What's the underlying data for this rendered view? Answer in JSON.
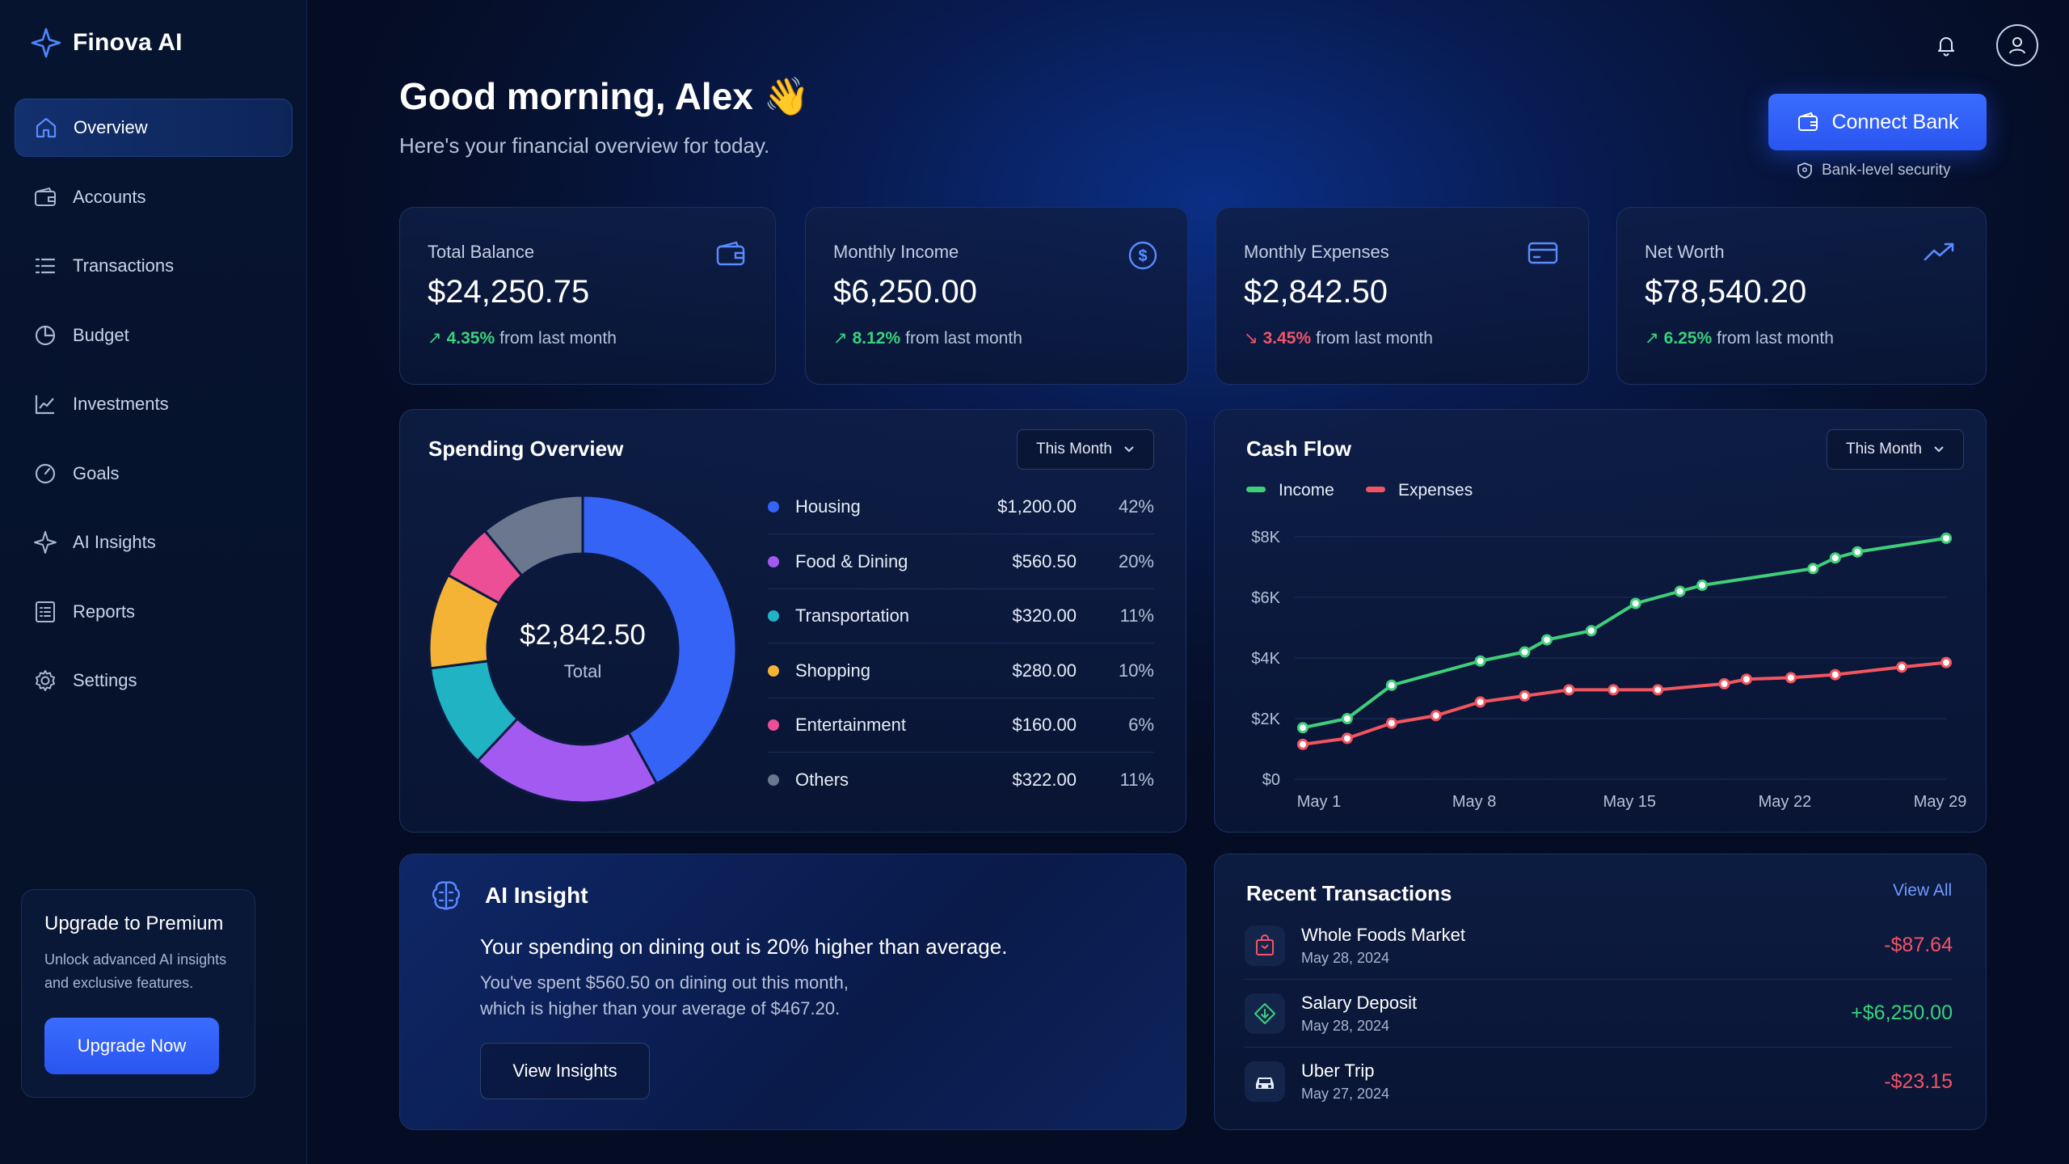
{
  "app": {
    "name": "Finova AI"
  },
  "sidebar": {
    "items": [
      {
        "label": "Overview",
        "icon": "home-icon",
        "active": true
      },
      {
        "label": "Accounts",
        "icon": "wallet-icon"
      },
      {
        "label": "Transactions",
        "icon": "list-icon"
      },
      {
        "label": "Budget",
        "icon": "pie-icon"
      },
      {
        "label": "Investments",
        "icon": "chart-line-icon"
      },
      {
        "label": "Goals",
        "icon": "target-icon"
      },
      {
        "label": "AI Insights",
        "icon": "sparkle-icon"
      },
      {
        "label": "Reports",
        "icon": "report-icon"
      },
      {
        "label": "Settings",
        "icon": "gear-icon"
      }
    ],
    "premium": {
      "title": "Upgrade to Premium",
      "line1": "Unlock advanced AI insights",
      "line2": "and exclusive features.",
      "button": "Upgrade Now"
    }
  },
  "header": {
    "greeting": "Good morning, Alex 👋",
    "subtitle": "Here's your financial overview for today.",
    "connect_button": "Connect Bank",
    "security_note": "Bank-level security"
  },
  "stats": [
    {
      "label": "Total Balance",
      "value": "$24,250.75",
      "change": "4.35%",
      "direction": "up",
      "suffix": "from last month",
      "icon": "wallet-icon"
    },
    {
      "label": "Monthly Income",
      "value": "$6,250.00",
      "change": "8.12%",
      "direction": "up",
      "suffix": "from last month",
      "icon": "dollar-circle-icon"
    },
    {
      "label": "Monthly Expenses",
      "value": "$2,842.50",
      "change": "3.45%",
      "direction": "down",
      "suffix": "from last month",
      "icon": "credit-card-icon"
    },
    {
      "label": "Net Worth",
      "value": "$78,540.20",
      "change": "6.25%",
      "direction": "up",
      "suffix": "from last month",
      "icon": "trend-up-icon"
    }
  ],
  "spending": {
    "title": "Spending Overview",
    "period": "This Month",
    "total": "$2,842.50",
    "total_label": "Total",
    "items": [
      {
        "name": "Housing",
        "amount": "$1,200.00",
        "pct": "42%",
        "value": 42,
        "color": "#3563f5"
      },
      {
        "name": "Food & Dining",
        "amount": "$560.50",
        "pct": "20%",
        "value": 20,
        "color": "#a35af0"
      },
      {
        "name": "Transportation",
        "amount": "$320.00",
        "pct": "11%",
        "value": 11,
        "color": "#1fb3c4"
      },
      {
        "name": "Shopping",
        "amount": "$280.00",
        "pct": "10%",
        "value": 10,
        "color": "#f5b336"
      },
      {
        "name": "Entertainment",
        "amount": "$160.00",
        "pct": "6%",
        "value": 6,
        "color": "#ec4f95"
      },
      {
        "name": "Others",
        "amount": "$322.00",
        "pct": "11%",
        "value": 11,
        "color": "#6b778f"
      }
    ]
  },
  "cashflow": {
    "title": "Cash Flow",
    "period": "This Month"
  },
  "chart_data": {
    "type": "line",
    "title": "Cash Flow",
    "x": [
      1,
      3,
      5,
      7,
      9,
      11,
      12,
      15,
      16,
      18,
      21,
      22,
      25,
      27,
      29
    ],
    "x_ticks": [
      "May 1",
      "May 8",
      "May 15",
      "May 22",
      "May 29"
    ],
    "x_tick_values": [
      1,
      8,
      15,
      22,
      29
    ],
    "y_ticks": [
      "$0",
      "$2K",
      "$4K",
      "$6K",
      "$8K"
    ],
    "y_tick_values": [
      0,
      2000,
      4000,
      6000,
      8000
    ],
    "ylim": [
      0,
      8000
    ],
    "xlim": [
      1,
      29
    ],
    "grid": true,
    "legend": "top-left",
    "series": [
      {
        "name": "Income",
        "color": "#3fce7a",
        "points": [
          [
            1,
            1700
          ],
          [
            3,
            2000
          ],
          [
            5,
            3100
          ],
          [
            9,
            3900
          ],
          [
            11,
            4200
          ],
          [
            12,
            4600
          ],
          [
            14,
            4900
          ],
          [
            16,
            5800
          ],
          [
            18,
            6200
          ],
          [
            19,
            6400
          ],
          [
            24,
            6950
          ],
          [
            25,
            7300
          ],
          [
            26,
            7500
          ],
          [
            30,
            7950
          ]
        ]
      },
      {
        "name": "Expenses",
        "color": "#f2555f",
        "points": [
          [
            1,
            1150
          ],
          [
            3,
            1350
          ],
          [
            5,
            1850
          ],
          [
            7,
            2100
          ],
          [
            9,
            2550
          ],
          [
            11,
            2750
          ],
          [
            13,
            2950
          ],
          [
            15,
            2950
          ],
          [
            17,
            2950
          ],
          [
            20,
            3150
          ],
          [
            21,
            3300
          ],
          [
            23,
            3350
          ],
          [
            25,
            3450
          ],
          [
            28,
            3700
          ],
          [
            30,
            3850
          ]
        ]
      }
    ]
  },
  "insight": {
    "title": "AI Insight",
    "headline": "Your spending on dining out is 20% higher than average.",
    "body_line1": "You've spent $560.50 on dining out this month,",
    "body_line2": "which is higher than your average of $467.20.",
    "button": "View Insights"
  },
  "transactions": {
    "title": "Recent Transactions",
    "view_all": "View All",
    "items": [
      {
        "name": "Whole Foods Market",
        "date": "May 28, 2024",
        "amount": "-$87.64",
        "type": "debit",
        "icon": "shopping-bag-icon"
      },
      {
        "name": "Salary Deposit",
        "date": "May 28, 2024",
        "amount": "+$6,250.00",
        "type": "credit",
        "icon": "deposit-icon"
      },
      {
        "name": "Uber Trip",
        "date": "May 27, 2024",
        "amount": "-$23.15",
        "type": "debit",
        "icon": "car-icon"
      }
    ]
  }
}
